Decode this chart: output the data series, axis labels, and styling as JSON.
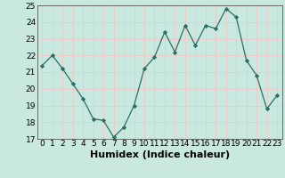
{
  "x": [
    0,
    1,
    2,
    3,
    4,
    5,
    6,
    7,
    8,
    9,
    10,
    11,
    12,
    13,
    14,
    15,
    16,
    17,
    18,
    19,
    20,
    21,
    22,
    23
  ],
  "y": [
    21.4,
    22.0,
    21.2,
    20.3,
    19.4,
    18.2,
    18.1,
    17.1,
    17.7,
    19.0,
    21.2,
    21.9,
    23.4,
    22.2,
    23.8,
    22.6,
    23.8,
    23.6,
    24.8,
    24.3,
    21.7,
    20.8,
    18.8,
    19.6
  ],
  "xlabel": "Humidex (Indice chaleur)",
  "ylim": [
    17,
    25
  ],
  "xlim": [
    -0.5,
    23.5
  ],
  "yticks": [
    17,
    18,
    19,
    20,
    21,
    22,
    23,
    24,
    25
  ],
  "xticks": [
    0,
    1,
    2,
    3,
    4,
    5,
    6,
    7,
    8,
    9,
    10,
    11,
    12,
    13,
    14,
    15,
    16,
    17,
    18,
    19,
    20,
    21,
    22,
    23
  ],
  "xtick_labels": [
    "0",
    "1",
    "2",
    "3",
    "4",
    "5",
    "6",
    "7",
    "8",
    "9",
    "10",
    "11",
    "12",
    "13",
    "14",
    "15",
    "16",
    "17",
    "18",
    "19",
    "20",
    "21",
    "22",
    "23"
  ],
  "line_color": "#2d6e63",
  "marker_color": "#2d6e63",
  "bg_color": "#c8e8e0",
  "grid_color": "#f0c8c8",
  "xlabel_fontsize": 8,
  "tick_fontsize": 6.5,
  "fig_width": 3.2,
  "fig_height": 2.0,
  "dpi": 100
}
